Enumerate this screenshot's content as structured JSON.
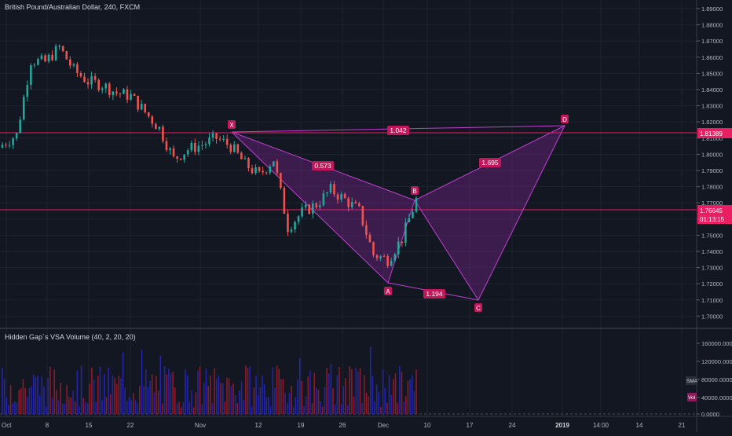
{
  "header": {
    "title": "British Pound/Australian Dollar, 240, FXCM"
  },
  "indicator": {
    "title": "Hidden Gap`s VSA Volume (40, 2, 20, 20)",
    "sma_tag": "SMA",
    "vol_tag": "Vol"
  },
  "price_axis": {
    "ticks": [
      "1.89000",
      "1.88000",
      "1.87000",
      "1.86000",
      "1.85000",
      "1.84000",
      "1.83000",
      "1.82000",
      "1.81000",
      "1.80000",
      "1.79000",
      "1.78000",
      "1.77000",
      "1.76000",
      "1.75000",
      "1.74000",
      "1.73000",
      "1.72000",
      "1.71000",
      "1.70000"
    ],
    "levels": {
      "upper": "1.81389",
      "current": "1.76645",
      "countdown": "01:13:15"
    }
  },
  "volume_axis": {
    "ticks": [
      "160000.0000",
      "120000.0000",
      "80000.0000",
      "40000.0000",
      "0.0000"
    ]
  },
  "time_axis": {
    "ticks": [
      "Oct",
      "8",
      "15",
      "22",
      "Nov",
      "12",
      "19",
      "26",
      "Dec",
      "10",
      "17",
      "24",
      "2019",
      "14:00",
      "14",
      "21"
    ]
  },
  "pattern": {
    "points": {
      "X": "X",
      "A": "A",
      "B": "B",
      "C": "C",
      "D": "D"
    },
    "ratios": {
      "xb": "0.573",
      "xd": "1.042",
      "bd": "1.695",
      "ac": "1.194"
    }
  },
  "colors": {
    "background": "#131722",
    "up": "#26a69a",
    "down": "#ef5350",
    "pattern": "#e040fb",
    "line": "#e91e63",
    "vol_blue": "#2424a8",
    "vol_red": "#8b1a2a"
  },
  "chart_data": [
    {
      "type": "candlestick",
      "title": "British Pound/Australian Dollar, 240, FXCM",
      "x": [
        "Oct 2",
        "Oct 4",
        "Oct 6",
        "Oct 8",
        "Oct 10",
        "Oct 12",
        "Oct 15",
        "Oct 17",
        "Oct 19",
        "Oct 22",
        "Oct 24",
        "Oct 26",
        "Oct 29",
        "Oct 31",
        "Nov 2",
        "Nov 5",
        "Nov 7",
        "Nov 9",
        "Nov 12",
        "Nov 14",
        "Nov 16",
        "Nov 19",
        "Nov 21",
        "Nov 23",
        "Nov 26",
        "Nov 28",
        "Nov 30",
        "Dec 3",
        "Dec 5",
        "Dec 7"
      ],
      "close": [
        1.806,
        1.812,
        1.858,
        1.857,
        1.866,
        1.852,
        1.845,
        1.843,
        1.838,
        1.836,
        1.826,
        1.816,
        1.797,
        1.803,
        1.806,
        1.81,
        1.805,
        1.794,
        1.787,
        1.797,
        1.755,
        1.764,
        1.769,
        1.778,
        1.772,
        1.765,
        1.738,
        1.735,
        1.748,
        1.772
      ],
      "ylim": [
        1.695,
        1.895
      ],
      "levels": [
        1.81389,
        1.76645
      ]
    },
    {
      "type": "xabcd_pattern",
      "points": [
        {
          "label": "X",
          "date": "Nov 8",
          "price": 1.814
        },
        {
          "label": "A",
          "date": "Dec 3",
          "price": 1.72
        },
        {
          "label": "B",
          "date": "Dec 7",
          "price": 1.774
        },
        {
          "label": "C",
          "date": "Dec 17",
          "price": 1.71
        },
        {
          "label": "D",
          "date": "Jan 2",
          "price": 1.818
        }
      ],
      "ratios": {
        "XB": 0.573,
        "XD": 1.042,
        "BD": 1.695,
        "AC": 1.194
      }
    },
    {
      "type": "bar",
      "title": "Hidden Gap`s VSA Volume (40, 2, 20, 20)",
      "ylim": [
        0,
        170000
      ]
    }
  ]
}
